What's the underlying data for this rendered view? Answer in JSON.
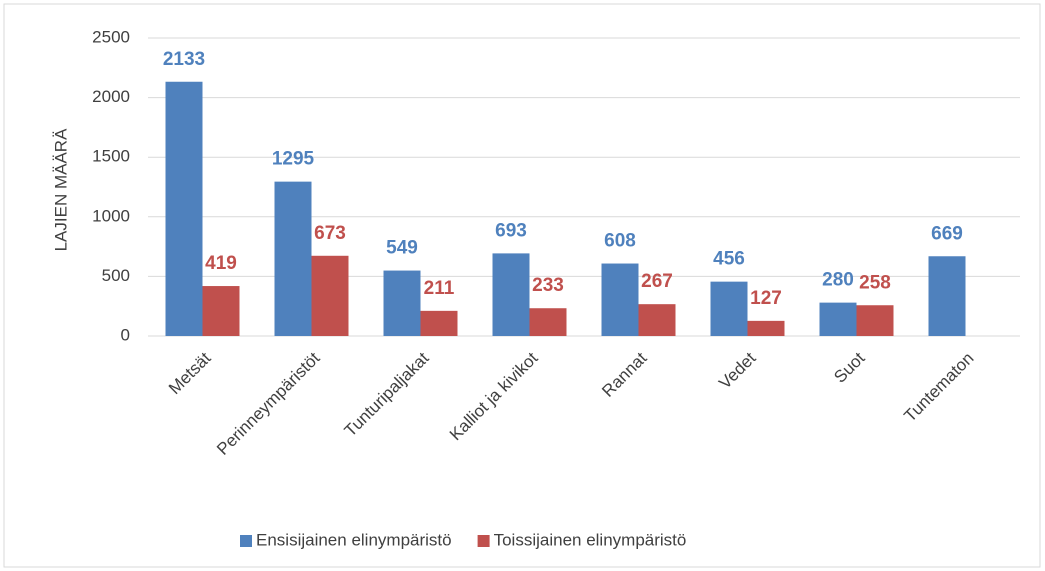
{
  "chart_data": {
    "type": "bar",
    "y_label": "LAJIEN MÄÄRÄ",
    "categories": [
      "Metsät",
      "Perinneympäristöt",
      "Tunturipaljakat",
      "Kalliot ja kivikot",
      "Rannat",
      "Vedet",
      "Suot",
      "Tuntematon"
    ],
    "series": [
      {
        "name": "Ensisijainen elinympäristö",
        "color": "#4f81bd",
        "values": [
          2133,
          1295,
          549,
          693,
          608,
          456,
          280,
          669
        ]
      },
      {
        "name": "Toissijainen elinympäristö",
        "color": "#c0504d",
        "values": [
          419,
          673,
          211,
          233,
          267,
          127,
          258,
          null
        ]
      }
    ],
    "ylim": [
      0,
      2500
    ],
    "yticks": [
      0,
      500,
      1000,
      1500,
      2000,
      2500
    ],
    "grid": true,
    "legend": "bottom"
  }
}
